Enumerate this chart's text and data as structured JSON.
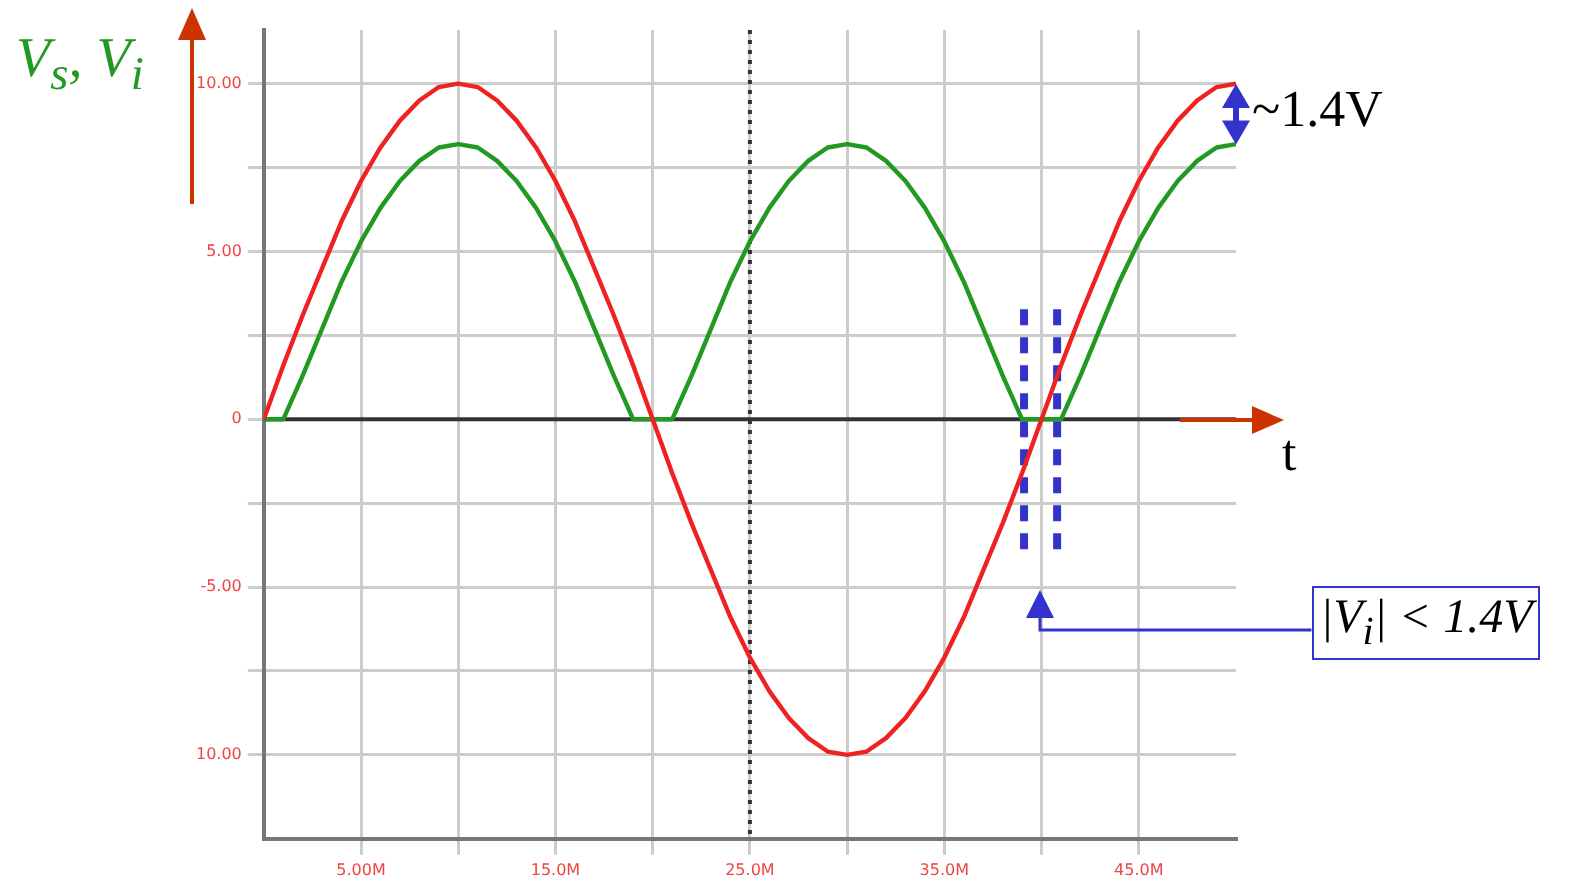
{
  "chart_data": {
    "type": "line",
    "ylabel": "V$_{s}$, V$_{i}$",
    "xlabel": "t",
    "x": [
      0,
      1,
      2,
      3,
      4,
      5,
      6,
      7,
      8,
      9,
      10,
      11,
      12,
      13,
      14,
      15,
      16,
      17,
      18,
      19,
      20,
      21,
      22,
      23,
      24,
      25,
      26,
      27,
      28,
      29,
      30,
      31,
      32,
      33,
      34,
      35,
      36,
      37,
      38,
      39,
      40,
      41,
      42,
      43,
      44,
      45,
      46,
      47,
      48,
      49,
      50
    ],
    "series": [
      {
        "color": "#ee2222",
        "values": [
          0,
          1.6,
          3.1,
          4.5,
          5.9,
          7.1,
          8.1,
          8.9,
          9.5,
          9.9,
          10,
          9.9,
          9.5,
          8.9,
          8.1,
          7.1,
          5.9,
          4.5,
          3.1,
          1.6,
          0,
          -1.6,
          -3.1,
          -4.5,
          -5.9,
          -7.1,
          -8.1,
          -8.9,
          -9.5,
          -9.9,
          -10,
          -9.9,
          -9.5,
          -8.9,
          -8.1,
          -7.1,
          -5.9,
          -4.5,
          -3.1,
          -1.6,
          0,
          1.6,
          3.1,
          4.5,
          5.9,
          7.1,
          8.1,
          8.9,
          9.5,
          9.9,
          10
        ]
      },
      {
        "color": "#229922",
        "values": [
          0,
          0,
          1.3,
          2.7,
          4.1,
          5.3,
          6.3,
          7.1,
          7.7,
          8.1,
          8.2,
          8.1,
          7.7,
          7.1,
          6.3,
          5.3,
          4.1,
          2.7,
          1.3,
          0,
          0,
          0,
          1.3,
          2.7,
          4.1,
          5.3,
          6.3,
          7.1,
          7.7,
          8.1,
          8.2,
          8.1,
          7.7,
          7.1,
          6.3,
          5.3,
          4.1,
          2.7,
          1.3,
          0,
          0,
          0,
          1.3,
          2.7,
          4.1,
          5.3,
          6.3,
          7.1,
          7.7,
          8.1,
          8.2
        ]
      }
    ],
    "xlim": [
      0,
      50
    ],
    "xticks": [
      {
        "value": 5,
        "label": "5.00M"
      },
      {
        "value": 10,
        "label": null
      },
      {
        "value": 15,
        "label": "15.0M"
      },
      {
        "value": 20,
        "label": null
      },
      {
        "value": 25,
        "label": "25.0M"
      },
      {
        "value": 30,
        "label": null
      },
      {
        "value": 35,
        "label": "35.0M"
      },
      {
        "value": 40,
        "label": null
      },
      {
        "value": 45,
        "label": "45.0M"
      }
    ],
    "ylim": [
      -12.5,
      11.6
    ],
    "yticks": [
      {
        "value": -10,
        "label": "10.00"
      },
      {
        "value": -7.5,
        "label": null
      },
      {
        "value": -5,
        "label": "-5.00"
      },
      {
        "value": -2.5,
        "label": null
      },
      0,
      {
        "value": 2.5,
        "label": null
      },
      {
        "value": 5,
        "label": "5.00"
      },
      {
        "value": 7.5,
        "label": null
      },
      {
        "value": 10,
        "label": "10.00"
      }
    ],
    "grid": true,
    "legend": false,
    "marker": "none",
    "line_style": "solid",
    "ref_lines": [
      {
        "axis": "y",
        "value": 0,
        "color": "#333333"
      },
      {
        "axis": "x",
        "value": 25,
        "color": "#333333",
        "line_style": "dotted"
      },
      {
        "axis": "x",
        "value": 39.1,
        "color": "#3333cc",
        "line_style": "dashed"
      },
      {
        "axis": "x",
        "value": 40.8,
        "color": "#3333cc",
        "line_style": "dashed"
      }
    ],
    "annotations": [
      "~1.4V",
      "|V$_{i}$| < 1.4V"
    ]
  }
}
